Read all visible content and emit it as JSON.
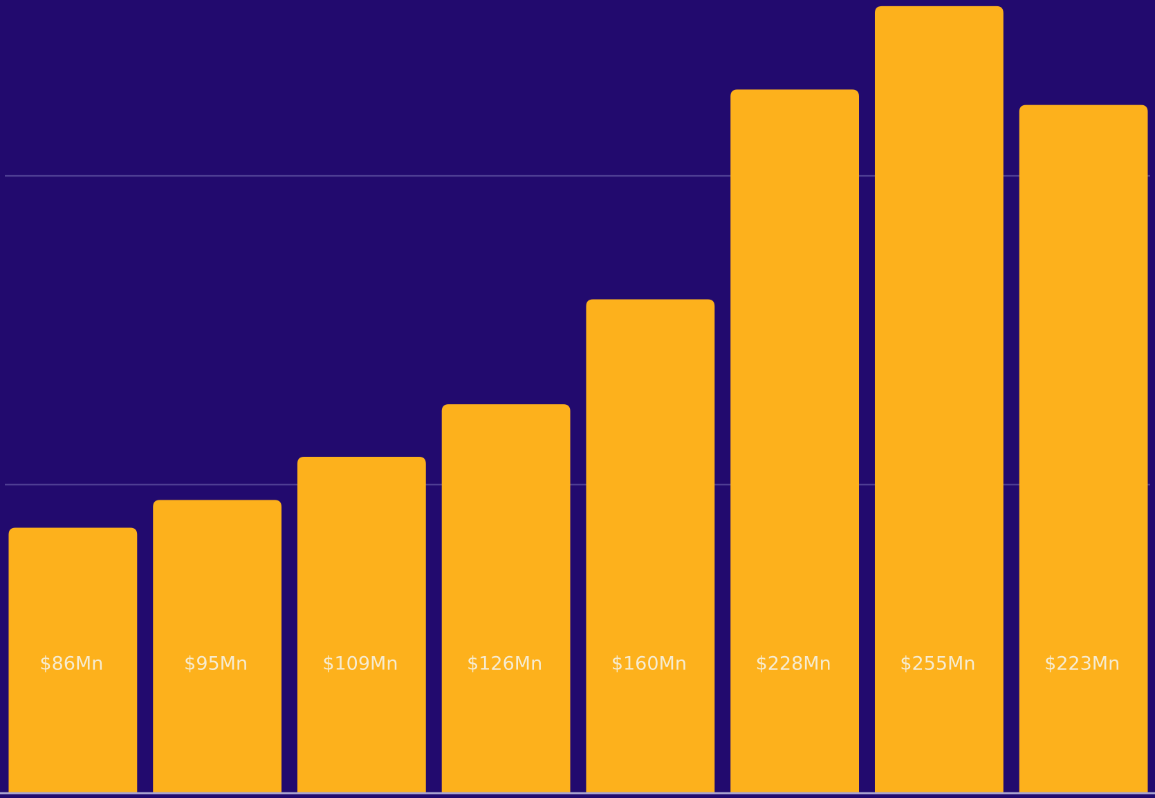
{
  "chart_data": {
    "type": "bar",
    "values": [
      86,
      95,
      109,
      126,
      160,
      228,
      255,
      223
    ],
    "value_labels": [
      "$86Mn",
      "$95Mn",
      "$109Mn",
      "$126Mn",
      "$160Mn",
      "$228Mn",
      "$255Mn",
      "$223Mn"
    ],
    "color": "#FDB11C",
    "ylim": [
      0,
      257
    ],
    "yticks": [
      100,
      200
    ],
    "grid": true
  }
}
